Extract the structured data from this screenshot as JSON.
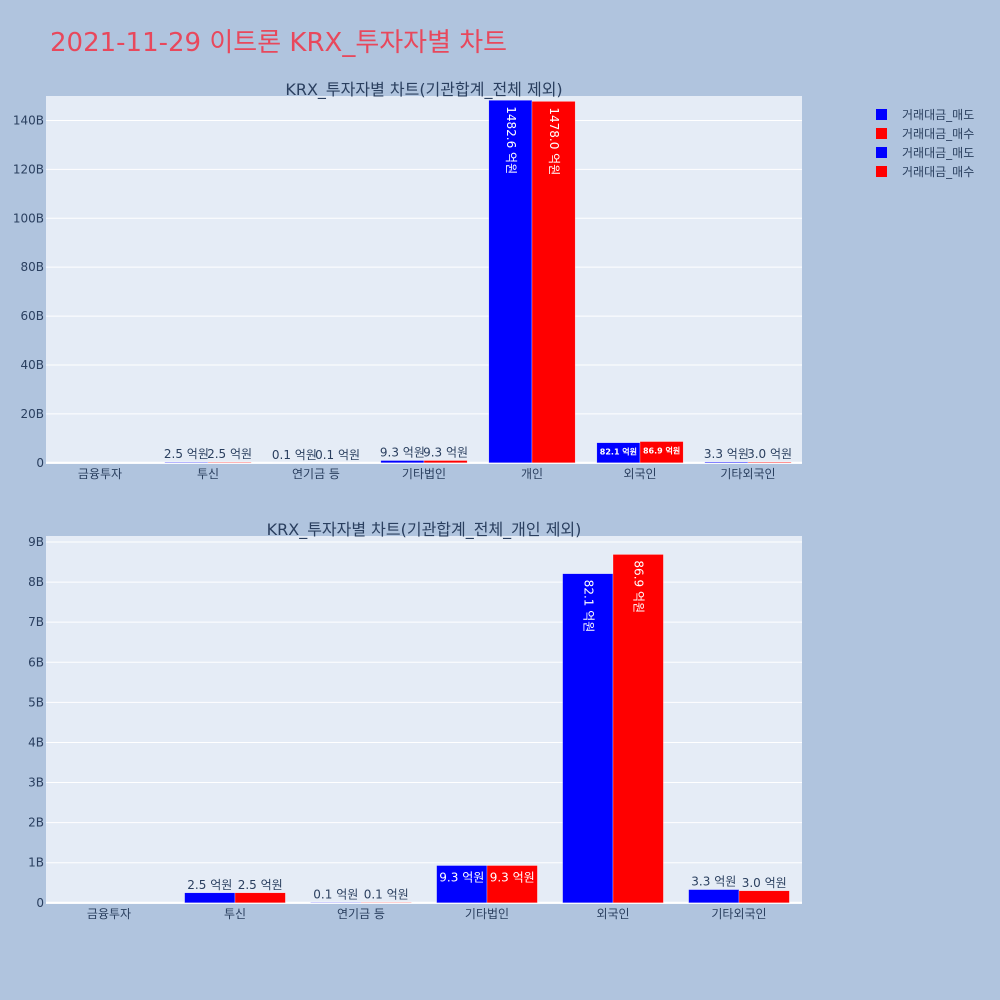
{
  "page_title": "2021-11-29 이트론 KRX_투자자별 차트",
  "colors": {
    "sell": "#0000ff",
    "buy": "#ff0000",
    "plot_bg": "#e5ecf6",
    "page_bg": "#b0c4de",
    "title": "#e8485c"
  },
  "legend": {
    "placement": "top-right",
    "entries": [
      {
        "label": "거래대금_매도",
        "color": "#0000ff"
      },
      {
        "label": "거래대금_매수",
        "color": "#ff0000"
      },
      {
        "label": "거래대금_매도",
        "color": "#0000ff"
      },
      {
        "label": "거래대금_매수",
        "color": "#ff0000"
      }
    ]
  },
  "chart_data": [
    {
      "type": "bar",
      "title": "KRX_투자자별 차트(기관합계_전체 제외)",
      "categories": [
        "금융투자",
        "투신",
        "연기금 등",
        "기타법인",
        "개인",
        "외국인",
        "기타외국인"
      ],
      "series": [
        {
          "name": "거래대금_매도",
          "color": "#0000ff",
          "values": [
            0,
            250000000,
            10000000,
            930000000,
            148260000000,
            8210000000,
            330000000
          ],
          "labels": [
            "",
            "2.5 억원",
            "0.1 억원",
            "9.3 억원",
            "1482.6 억원",
            "82.1 억원",
            "3.3 억원"
          ]
        },
        {
          "name": "거래대금_매수",
          "color": "#ff0000",
          "values": [
            0,
            250000000,
            10000000,
            930000000,
            147800000000,
            8690000000,
            300000000
          ],
          "labels": [
            "",
            "2.5 억원",
            "0.1 억원",
            "9.3 억원",
            "1478.0 억원",
            "86.9 억원",
            "3.0 억원"
          ]
        }
      ],
      "ylim": [
        -500000000,
        150000000000
      ],
      "yticks": [
        0,
        20000000000,
        40000000000,
        60000000000,
        80000000000,
        100000000000,
        120000000000,
        140000000000
      ],
      "ytick_labels": [
        "0",
        "20B",
        "40B",
        "60B",
        "80B",
        "100B",
        "120B",
        "140B"
      ],
      "grid": true
    },
    {
      "type": "bar",
      "title": "KRX_투자자별 차트(기관합계_전체_개인 제외)",
      "categories": [
        "금융투자",
        "투신",
        "연기금 등",
        "기타법인",
        "외국인",
        "기타외국인"
      ],
      "series": [
        {
          "name": "거래대금_매도",
          "color": "#0000ff",
          "values": [
            0,
            250000000,
            10000000,
            930000000,
            8210000000,
            330000000
          ],
          "labels": [
            "",
            "2.5 억원",
            "0.1 억원",
            "9.3 억원",
            "82.1 억원",
            "3.3 억원"
          ]
        },
        {
          "name": "거래대금_매수",
          "color": "#ff0000",
          "values": [
            0,
            250000000,
            10000000,
            930000000,
            8690000000,
            300000000
          ],
          "labels": [
            "",
            "2.5 억원",
            "0.1 억원",
            "9.3 억원",
            "86.9 억원",
            "3.0 억원"
          ]
        }
      ],
      "ylim": [
        -30000000,
        9150000000
      ],
      "yticks": [
        0,
        1000000000,
        2000000000,
        3000000000,
        4000000000,
        5000000000,
        6000000000,
        7000000000,
        8000000000,
        9000000000
      ],
      "ytick_labels": [
        "0",
        "1B",
        "2B",
        "3B",
        "4B",
        "5B",
        "6B",
        "7B",
        "8B",
        "9B"
      ],
      "grid": true
    }
  ]
}
